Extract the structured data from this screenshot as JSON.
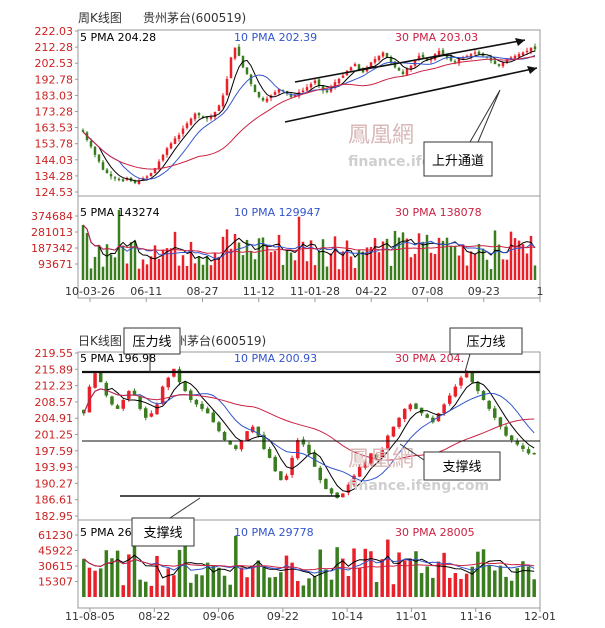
{
  "chart_data": [
    {
      "type": "candlestick",
      "title": "周K线图",
      "stock": "贵州茅台(600519)",
      "price_ma": [
        {
          "label": "5 PMA",
          "value": "204.28",
          "color": "#000000"
        },
        {
          "label": "10 PMA",
          "value": "202.39",
          "color": "#3355cc"
        },
        {
          "label": "30 PMA",
          "value": "203.03",
          "color": "#cc2244"
        }
      ],
      "price_ticks": [
        "222.03",
        "212.28",
        "202.53",
        "192.78",
        "183.03",
        "173.28",
        "163.53",
        "153.78",
        "144.03",
        "134.28",
        "124.53"
      ],
      "ylim": [
        124.53,
        222.03
      ],
      "volume_ma": [
        {
          "label": "5 PMA",
          "value": "143274",
          "color": "#000000"
        },
        {
          "label": "10 PMA",
          "value": "129947",
          "color": "#3355cc"
        },
        {
          "label": "30 PMA",
          "value": "138078",
          "color": "#cc2244"
        }
      ],
      "volume_ticks": [
        "374684",
        "281013",
        "187342",
        "93671"
      ],
      "x_ticks": [
        "10-03-26",
        "06-11",
        "08-27",
        "11-12",
        "11-01-28",
        "04-22",
        "07-08",
        "09-23",
        "1"
      ],
      "annotation": "上升通道",
      "closes": [
        161,
        156,
        152,
        147,
        143,
        138,
        136,
        134,
        133,
        132,
        131,
        133,
        131,
        130,
        131,
        133,
        134,
        136,
        139,
        143,
        147,
        151,
        154,
        157,
        159,
        163,
        166,
        169,
        172,
        171,
        170,
        169,
        170,
        173,
        177,
        183,
        193,
        206,
        212,
        207,
        200,
        196,
        190,
        185,
        182,
        180,
        181,
        183,
        185,
        187,
        186,
        184,
        182,
        183,
        185,
        186,
        188,
        190,
        192,
        189,
        186,
        185,
        188,
        191,
        193,
        195,
        198,
        200,
        202,
        199,
        197,
        200,
        203,
        205,
        207,
        209,
        206,
        203,
        200,
        198,
        196,
        199,
        201,
        204,
        207,
        206,
        204,
        205,
        208,
        210,
        208,
        206,
        204,
        203,
        205,
        206,
        207,
        208,
        209,
        208,
        207,
        206,
        204,
        202,
        201,
        203,
        205,
        206,
        207,
        208,
        209,
        210,
        212,
        211
      ]
    },
    {
      "type": "candlestick",
      "title": "日K线图",
      "stock": "贵州茅台(600519)",
      "price_ma": [
        {
          "label": "5 PMA",
          "value": "196.98",
          "color": "#000000"
        },
        {
          "label": "10 PMA",
          "value": "200.93",
          "color": "#3355cc"
        },
        {
          "label": "30 PMA",
          "value": "204.",
          "color": "#cc2244"
        }
      ],
      "price_ticks": [
        "219.55",
        "215.89",
        "212.23",
        "208.57",
        "204.91",
        "201.25",
        "197.59",
        "193.93",
        "190.27",
        "186.61",
        "182.95"
      ],
      "ylim": [
        182.95,
        219.55
      ],
      "volume_ma": [
        {
          "label": "5 PMA",
          "value": "26",
          "color": "#000000"
        },
        {
          "label": "10 PMA",
          "value": "29778",
          "color": "#3355cc"
        },
        {
          "label": "30 PMA",
          "value": "28005",
          "color": "#cc2244"
        }
      ],
      "volume_ticks": [
        "61230",
        "45922",
        "30615",
        "15307"
      ],
      "x_ticks": [
        "11-08-05",
        "08-22",
        "09-06",
        "09-22",
        "10-14",
        "11-01",
        "11-16",
        "12-01"
      ],
      "annotations": [
        "压力线",
        "压力线",
        "支撑线",
        "支撑线"
      ],
      "closes": [
        206,
        212,
        215,
        213,
        210,
        208,
        207,
        209,
        211,
        210,
        207,
        205,
        206,
        208,
        212,
        214,
        216,
        213,
        211,
        209,
        208,
        207,
        206,
        204,
        202,
        200,
        199,
        198,
        200,
        202,
        203,
        201,
        198,
        196,
        193,
        191,
        192,
        196,
        200,
        199,
        197,
        194,
        191,
        189,
        188,
        187,
        188,
        190,
        192,
        194,
        195,
        197,
        196,
        198,
        201,
        203,
        205,
        207,
        208,
        207,
        206,
        205,
        204,
        206,
        208,
        210,
        212,
        214,
        215,
        213,
        211,
        209,
        207,
        205,
        203,
        201,
        200,
        199,
        198,
        197,
        197
      ]
    }
  ]
}
